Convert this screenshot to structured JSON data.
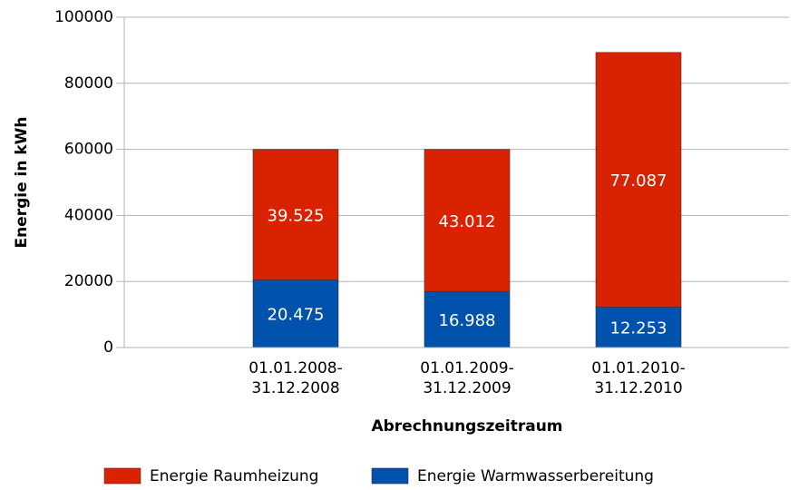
{
  "chart_data": {
    "type": "stacked-bar",
    "categories": [
      "01.01.2008-31.12.2008",
      "01.01.2009-31.12.2009",
      "01.01.2010-31.12.2010"
    ],
    "series": [
      {
        "name": "Energie Raumheizung",
        "color": "#d92300",
        "values": [
          39525,
          43012,
          77087
        ],
        "value_labels": [
          "39.525",
          "43.012",
          "77.087"
        ]
      },
      {
        "name": "Energie Warmwasserbereitung",
        "color": "#0052ac",
        "values": [
          20475,
          16988,
          12253
        ],
        "value_labels": [
          "20.475",
          "16.988",
          "12.253"
        ]
      }
    ],
    "x_label": "Abrechnungszeitraum",
    "y_label": "Energie in kWh",
    "ylim": [
      0,
      100000
    ],
    "yticks": [
      0,
      20000,
      40000,
      60000,
      80000,
      100000
    ],
    "grid": true,
    "legend": "bottom"
  }
}
